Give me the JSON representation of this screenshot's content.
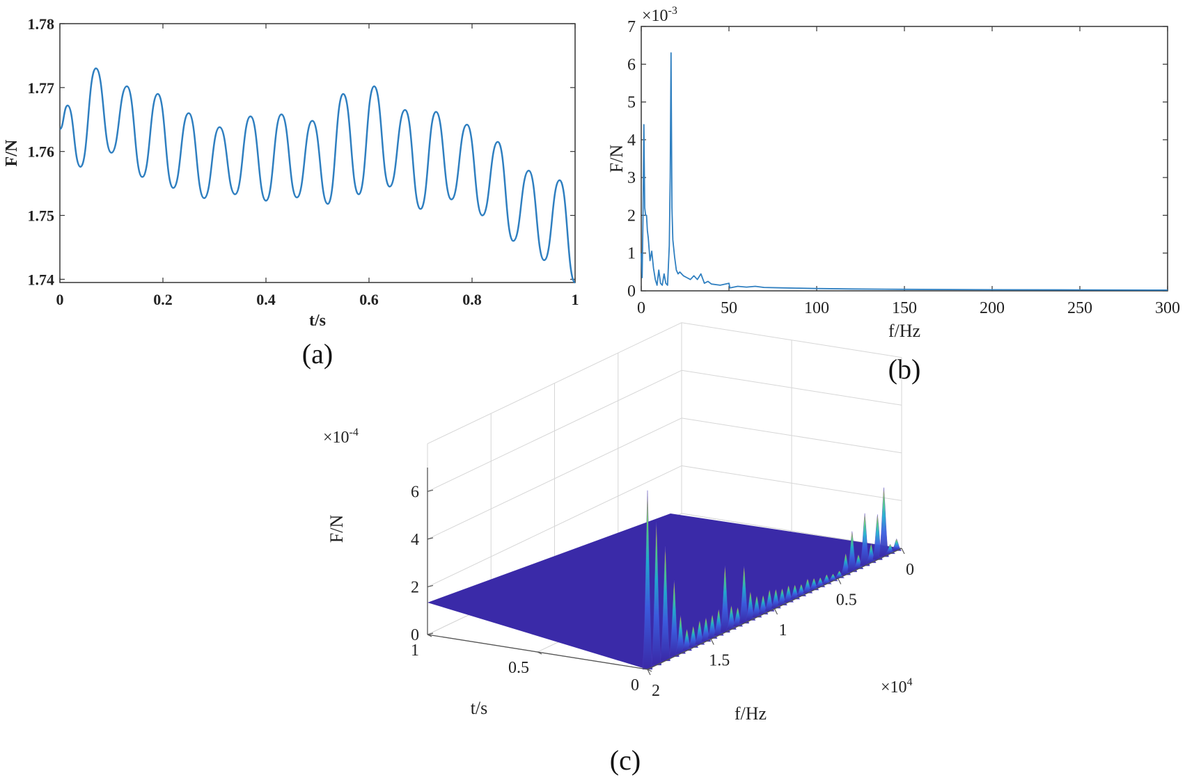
{
  "chart_data": [
    {
      "id": "a",
      "type": "line",
      "caption": "(a)",
      "xlabel": "t/s",
      "ylabel": "F/N",
      "xlim": [
        0,
        1
      ],
      "ylim": [
        1.7395,
        1.78
      ],
      "xticks": [
        0,
        0.2,
        0.4,
        0.6,
        0.8,
        1
      ],
      "xtick_labels": [
        "0",
        "0.2",
        "0.4",
        "0.6",
        "0.8",
        "1"
      ],
      "yticks": [
        1.74,
        1.75,
        1.76,
        1.77,
        1.78
      ],
      "ytick_labels": [
        "1.74",
        "1.75",
        "1.76",
        "1.77",
        "1.78"
      ],
      "grid": false,
      "line_color": "#2f7fc0",
      "series": [
        {
          "x": [
            0,
            0.015,
            0.04,
            0.07,
            0.1,
            0.13,
            0.16,
            0.19,
            0.22,
            0.25,
            0.28,
            0.31,
            0.34,
            0.37,
            0.4,
            0.43,
            0.46,
            0.49,
            0.52,
            0.55,
            0.58,
            0.61,
            0.64,
            0.67,
            0.7,
            0.73,
            0.76,
            0.79,
            0.82,
            0.85,
            0.88,
            0.91,
            0.94,
            0.97,
            1.0
          ],
          "y": [
            1.7635,
            1.7672,
            1.7576,
            1.773,
            1.7598,
            1.7702,
            1.756,
            1.769,
            1.7543,
            1.766,
            1.7527,
            1.7638,
            1.7533,
            1.7655,
            1.7523,
            1.7658,
            1.7528,
            1.7648,
            1.7518,
            1.769,
            1.7533,
            1.7702,
            1.7545,
            1.7665,
            1.751,
            1.7662,
            1.7525,
            1.7642,
            1.75,
            1.7615,
            1.746,
            1.757,
            1.743,
            1.7555,
            1.7395
          ]
        }
      ]
    },
    {
      "id": "b",
      "type": "line",
      "caption": "(b)",
      "xlabel": "f/Hz",
      "ylabel": "F/N",
      "y_multiplier": "×10",
      "y_multiplier_exp": "-3",
      "xlim": [
        0,
        300
      ],
      "ylim": [
        0,
        7
      ],
      "xticks": [
        0,
        50,
        100,
        150,
        200,
        250,
        300
      ],
      "xtick_labels": [
        "0",
        "50",
        "100",
        "150",
        "200",
        "250",
        "300"
      ],
      "yticks": [
        0,
        1,
        2,
        3,
        4,
        5,
        6,
        7
      ],
      "ytick_labels": [
        "0",
        "1",
        "2",
        "3",
        "4",
        "5",
        "6",
        "7"
      ],
      "grid": false,
      "line_color": "#2f7fc0",
      "series": [
        {
          "x": [
            0,
            0.5,
            1,
            1.5,
            2,
            2.5,
            3,
            3.5,
            4,
            5,
            6,
            7,
            8,
            9,
            10,
            11,
            12,
            13,
            14,
            15,
            16,
            16.5,
            17,
            17.5,
            18,
            19,
            20,
            21,
            22,
            24,
            26,
            28,
            30,
            32,
            34,
            36,
            38,
            40,
            45,
            50,
            50.5,
            55,
            60,
            65,
            70,
            80,
            90,
            100,
            120,
            150,
            200,
            250,
            300
          ],
          "y": [
            1.0,
            0.35,
            1.9,
            4.4,
            2.2,
            2.0,
            2.0,
            1.6,
            1.4,
            0.8,
            1.05,
            0.6,
            0.3,
            0.15,
            0.55,
            0.2,
            0.15,
            0.45,
            0.2,
            0.15,
            1.2,
            3.0,
            6.3,
            2.2,
            1.35,
            0.9,
            0.55,
            0.45,
            0.5,
            0.4,
            0.35,
            0.3,
            0.4,
            0.3,
            0.45,
            0.2,
            0.25,
            0.18,
            0.15,
            0.2,
            0.08,
            0.12,
            0.1,
            0.12,
            0.09,
            0.08,
            0.07,
            0.06,
            0.05,
            0.04,
            0.03,
            0.025,
            0.02
          ]
        }
      ]
    },
    {
      "id": "c",
      "type": "surface",
      "caption": "(c)",
      "xlabel": "f/Hz",
      "ylabel": "t/s",
      "zlabel": "F/N",
      "z_multiplier": "×10",
      "z_multiplier_exp": "-4",
      "x_multiplier": "×10",
      "x_multiplier_exp": "4",
      "xlim": [
        0,
        2
      ],
      "ylim": [
        0,
        1
      ],
      "zlim": [
        0,
        7
      ],
      "xticks": [
        0,
        0.5,
        1,
        1.5,
        2
      ],
      "xtick_labels": [
        "0",
        "0.5",
        "1",
        "1.5",
        "2"
      ],
      "yticks": [
        0,
        0.5,
        1
      ],
      "ytick_labels": [
        "0",
        "0.5",
        "1"
      ],
      "zticks": [
        0,
        2,
        4,
        6
      ],
      "ztick_labels": [
        "0",
        "2",
        "4",
        "6"
      ],
      "grid": true,
      "base_color": "#3a2aa8",
      "ridge_t0": {
        "x": [
          2.0,
          1.93,
          1.86,
          1.79,
          1.74,
          1.69,
          1.64,
          1.59,
          1.54,
          1.49,
          1.44,
          1.39,
          1.34,
          1.29,
          1.24,
          1.19,
          1.14,
          1.09,
          1.04,
          0.99,
          0.94,
          0.89,
          0.84,
          0.79,
          0.74,
          0.69,
          0.64,
          0.59,
          0.54,
          0.49,
          0.44,
          0.39,
          0.34,
          0.29,
          0.24,
          0.19,
          0.14,
          0.09,
          0.04
        ],
        "z": [
          7.5,
          6.0,
          4.8,
          3.2,
          1.6,
          0.9,
          0.9,
          1.0,
          1.0,
          1.0,
          1.1,
          2.8,
          1.0,
          0.8,
          2.4,
          1.2,
          0.9,
          0.8,
          0.9,
          0.8,
          0.7,
          0.7,
          0.6,
          0.5,
          0.6,
          0.5,
          0.4,
          0.4,
          0.3,
          0.3,
          0.9,
          1.7,
          0.6,
          2.2,
          0.8,
          1.9,
          2.9,
          0.4,
          0.5
        ]
      }
    }
  ]
}
